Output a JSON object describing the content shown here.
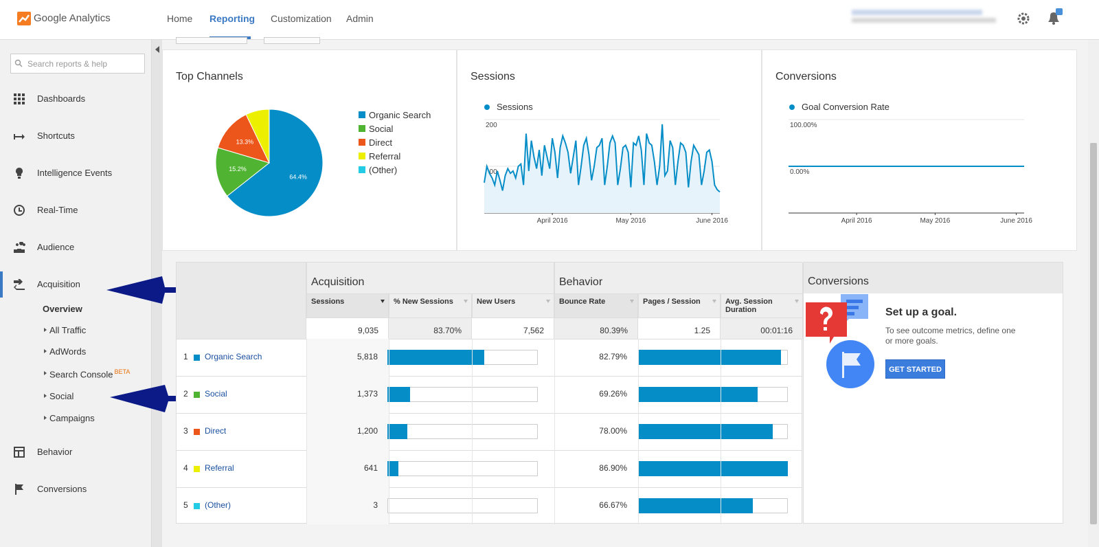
{
  "header": {
    "logo": "Google Analytics",
    "nav": [
      "Home",
      "Reporting",
      "Customization",
      "Admin"
    ],
    "active_nav": 1
  },
  "sidebar": {
    "search_placeholder": "Search reports & help",
    "items": [
      "Dashboards",
      "Shortcuts",
      "Intelligence Events",
      "Real-Time",
      "Audience",
      "Acquisition",
      "Behavior",
      "Conversions"
    ],
    "active_item": 5,
    "subitems": [
      "Overview",
      "All Traffic",
      "AdWords",
      "Search Console",
      "Social",
      "Campaigns"
    ],
    "beta_badge": "BETA"
  },
  "chart_data": [
    {
      "type": "pie",
      "title": "Top Channels",
      "categories": [
        "Organic Search",
        "Social",
        "Direct",
        "Referral",
        "(Other)"
      ],
      "values": [
        64.4,
        15.2,
        13.3,
        7.1,
        0.03
      ],
      "value_labels": [
        "64.4%",
        "15.2%",
        "13.3%",
        null,
        null
      ],
      "colors": [
        "#058dc7",
        "#50b432",
        "#ed561b",
        "#edef00",
        "#24cbe5"
      ],
      "legend": "right"
    },
    {
      "type": "line",
      "title": "Sessions",
      "series": [
        {
          "name": "Sessions",
          "color": "#058dc7",
          "values": [
            65,
            100,
            85,
            75,
            60,
            90,
            70,
            48,
            80,
            95,
            85,
            90,
            75,
            100,
            105,
            60,
            170,
            90,
            155,
            120,
            95,
            135,
            80,
            145,
            120,
            95,
            160,
            130,
            75,
            140,
            165,
            150,
            130,
            85,
            120,
            155,
            60,
            100,
            145,
            160,
            125,
            70,
            100,
            140,
            145,
            160,
            60,
            100,
            150,
            165,
            150,
            60,
            95,
            140,
            145,
            130,
            55,
            150,
            145,
            165,
            135,
            60,
            170,
            150,
            145,
            110,
            60,
            100,
            190,
            80,
            90,
            155,
            140,
            60,
            110,
            150,
            145,
            130,
            55,
            110,
            145,
            135,
            125,
            60,
            90,
            130,
            135,
            110,
            60,
            50,
            45
          ]
        }
      ],
      "xlim": [
        0,
        90
      ],
      "xticks": [
        {
          "value": 26,
          "label": "April 2016"
        },
        {
          "value": 56,
          "label": "May 2016"
        },
        {
          "value": 87,
          "label": "June 2016"
        }
      ],
      "ylim": [
        0,
        200
      ],
      "yticks": [
        100,
        200
      ],
      "grid": true,
      "area": true
    },
    {
      "type": "line",
      "title": "Conversions",
      "series": [
        {
          "name": "Goal Conversion Rate",
          "color": "#058dc7",
          "values": [
            0,
            0,
            0,
            0,
            0,
            0,
            0,
            0,
            0,
            0,
            0,
            0,
            0,
            0,
            0,
            0,
            0,
            0,
            0,
            0,
            0,
            0,
            0,
            0,
            0,
            0,
            0,
            0,
            0,
            0,
            0,
            0,
            0,
            0,
            0,
            0,
            0,
            0,
            0,
            0,
            0,
            0,
            0,
            0,
            0,
            0,
            0,
            0,
            0,
            0,
            0,
            0,
            0,
            0,
            0,
            0,
            0,
            0,
            0,
            0,
            0,
            0,
            0,
            0,
            0,
            0,
            0,
            0,
            0,
            0,
            0,
            0,
            0,
            0,
            0,
            0,
            0,
            0,
            0,
            0,
            0,
            0,
            0,
            0,
            0,
            0,
            0,
            0,
            0,
            0,
            0
          ]
        }
      ],
      "xlim": [
        0,
        90
      ],
      "xticks": [
        {
          "value": 26,
          "label": "April 2016"
        },
        {
          "value": 56,
          "label": "May 2016"
        },
        {
          "value": 87,
          "label": "June 2016"
        }
      ],
      "ylim": [
        -100,
        100
      ],
      "yticks": [
        {
          "value": 0,
          "label": "0.00%"
        },
        {
          "value": 100,
          "label": "100.00%"
        }
      ],
      "grid": true,
      "area": false
    }
  ],
  "table": {
    "groups": [
      "Acquisition",
      "Behavior"
    ],
    "columns": [
      "Sessions",
      "% New Sessions",
      "New Users",
      "Bounce Rate",
      "Pages / Session",
      "Avg. Session Duration"
    ],
    "totals": [
      {
        "value": 9035,
        "label": "9,035"
      },
      "83.70%",
      "7,562",
      "80.39%",
      "1.25",
      "00:01:16"
    ],
    "rows": [
      {
        "rank": "1",
        "channel": "Organic Search",
        "sessions": {
          "value": 5818,
          "label": "5,818"
        },
        "bounce_rate": {
          "value": 82.79,
          "label": "82.79%"
        }
      },
      {
        "rank": "2",
        "channel": "Social",
        "sessions": {
          "value": 1373,
          "label": "1,373"
        },
        "bounce_rate": {
          "value": 69.26,
          "label": "69.26%"
        }
      },
      {
        "rank": "3",
        "channel": "Direct",
        "sessions": {
          "value": 1200,
          "label": "1,200"
        },
        "bounce_rate": {
          "value": 78.0,
          "label": "78.00%"
        }
      },
      {
        "rank": "4",
        "channel": "Referral",
        "sessions": {
          "value": 641,
          "label": "641"
        },
        "bounce_rate": {
          "value": 86.9,
          "label": "86.90%"
        }
      },
      {
        "rank": "5",
        "channel": "(Other)",
        "sessions": {
          "value": 3,
          "label": "3"
        },
        "bounce_rate": {
          "value": 66.67,
          "label": "66.67%"
        }
      }
    ]
  },
  "goal_panel": {
    "title": "Conversions",
    "heading": "Set up a goal.",
    "text": "To see outcome metrics, define one or more goals.",
    "button": "GET STARTED"
  }
}
